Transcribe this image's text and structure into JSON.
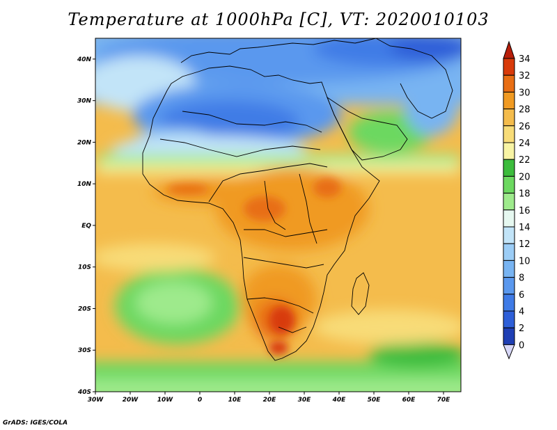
{
  "title": "Temperature at 1000hPa [C], VT: 2020010103",
  "footer": "GrADS: IGES/COLA",
  "map": {
    "variable": "Temperature",
    "level": "1000hPa",
    "units": "C",
    "valid_time": "2020010103",
    "lon_range": [
      -30,
      75
    ],
    "lat_range": [
      -40,
      45
    ],
    "lat_ticks": [
      "40N",
      "30N",
      "20N",
      "10N",
      "EQ",
      "10S",
      "20S",
      "30S",
      "40S"
    ],
    "lon_ticks": [
      "30W",
      "20W",
      "10W",
      "0",
      "10E",
      "20E",
      "30E",
      "40E",
      "50E",
      "60E",
      "70E"
    ]
  },
  "colorbar": {
    "labels": [
      "0",
      "2",
      "4",
      "6",
      "8",
      "10",
      "12",
      "14",
      "16",
      "18",
      "20",
      "22",
      "24",
      "26",
      "28",
      "30",
      "32",
      "34"
    ],
    "colors": [
      "#0a1a78",
      "#1f3fb4",
      "#2e5fd8",
      "#3f7be6",
      "#5a98ee",
      "#78b4f2",
      "#9ccdf6",
      "#c2e4f8",
      "#e6f8f0",
      "#9eea8c",
      "#6cd860",
      "#3cbc3c",
      "#f8f4a4",
      "#f8dc78",
      "#f4bc4c",
      "#f09a22",
      "#e86e14",
      "#d83a0a",
      "#b81e0a"
    ]
  },
  "colors": {
    "land_outline": "#000000",
    "frame": "#000000"
  }
}
